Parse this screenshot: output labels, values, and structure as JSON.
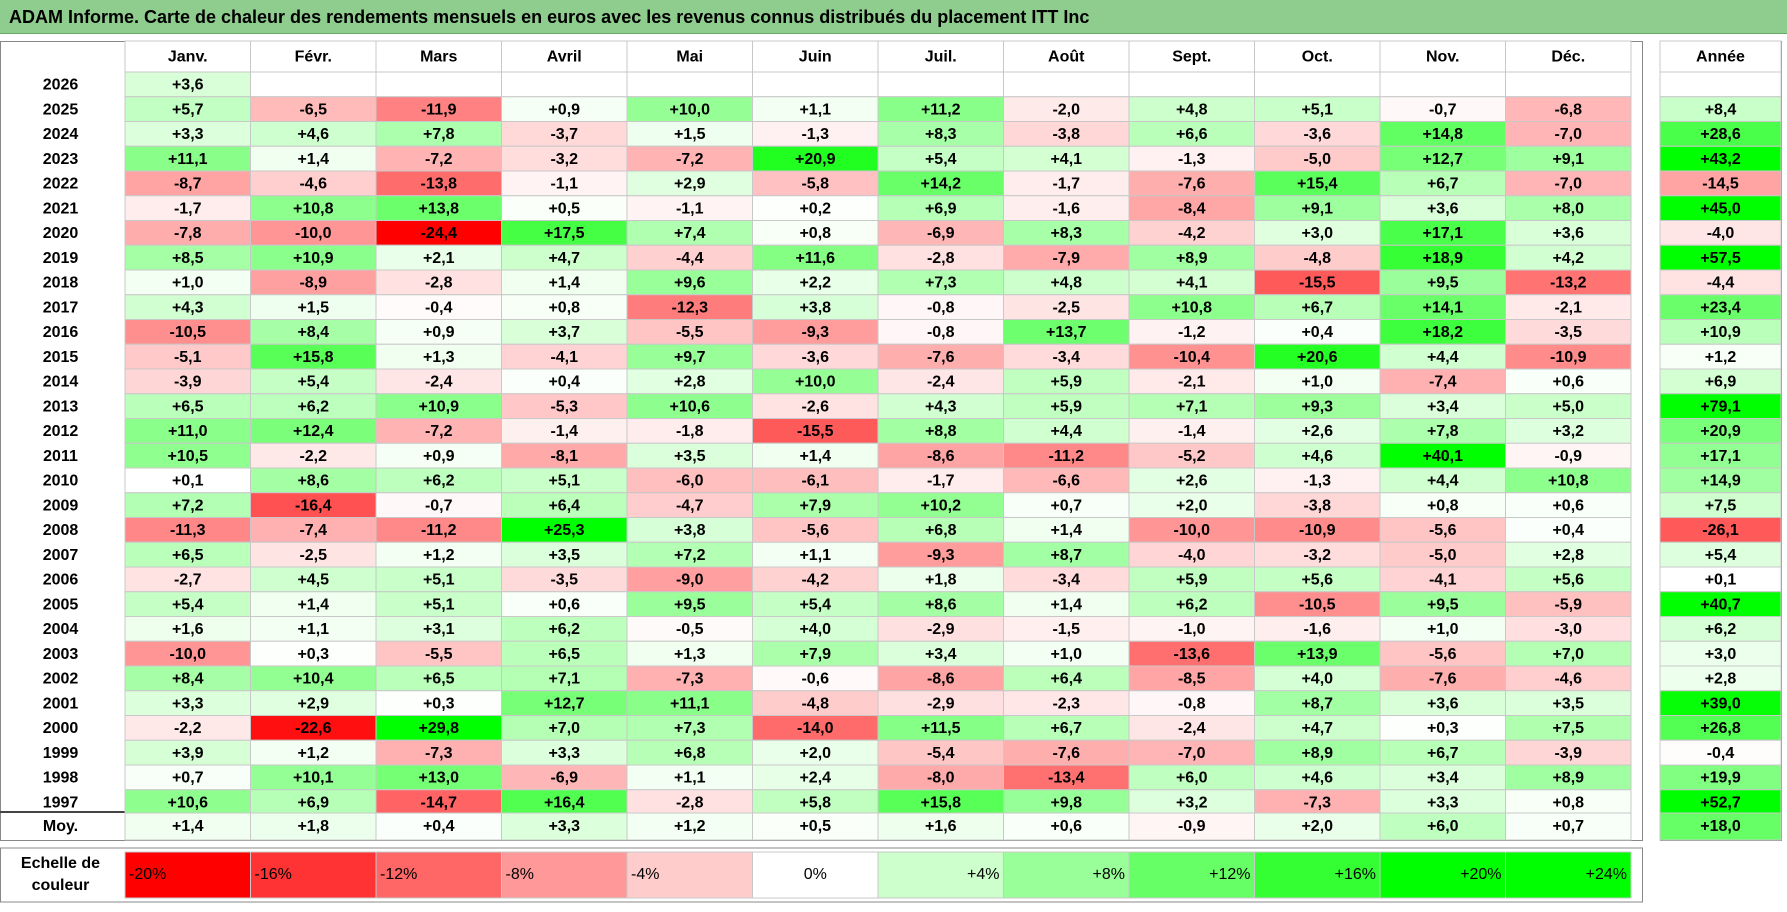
{
  "title": "ADAM Informe. Carte de chaleur des rendements mensuels en euros avec les revenus connus distribués du placement ITT Inc",
  "chart_data": {
    "type": "heatmap",
    "months": [
      "Janv.",
      "Févr.",
      "Mars",
      "Avril",
      "Mai",
      "Juin",
      "Juil.",
      "Août",
      "Sept.",
      "Oct.",
      "Nov.",
      "Déc."
    ],
    "year_column_label": "Année",
    "average_row_label": "Moy.",
    "rows": [
      {
        "year": "2026",
        "values": [
          "+3,6",
          null,
          null,
          null,
          null,
          null,
          null,
          null,
          null,
          null,
          null,
          null
        ],
        "annual": null
      },
      {
        "year": "2025",
        "values": [
          "+5,7",
          "-6,5",
          "-11,9",
          "+0,9",
          "+10,0",
          "+1,1",
          "+11,2",
          "-2,0",
          "+4,8",
          "+5,1",
          "-0,7",
          "-6,8"
        ],
        "annual": "+8,4"
      },
      {
        "year": "2024",
        "values": [
          "+3,3",
          "+4,6",
          "+7,8",
          "-3,7",
          "+1,5",
          "-1,3",
          "+8,3",
          "-3,8",
          "+6,6",
          "-3,6",
          "+14,8",
          "-7,0"
        ],
        "annual": "+28,6"
      },
      {
        "year": "2023",
        "values": [
          "+11,1",
          "+1,4",
          "-7,2",
          "-3,2",
          "-7,2",
          "+20,9",
          "+5,4",
          "+4,1",
          "-1,3",
          "-5,0",
          "+12,7",
          "+9,1"
        ],
        "annual": "+43,2"
      },
      {
        "year": "2022",
        "values": [
          "-8,7",
          "-4,6",
          "-13,8",
          "-1,1",
          "+2,9",
          "-5,8",
          "+14,2",
          "-1,7",
          "-7,6",
          "+15,4",
          "+6,7",
          "-7,0"
        ],
        "annual": "-14,5"
      },
      {
        "year": "2021",
        "values": [
          "-1,7",
          "+10,8",
          "+13,8",
          "+0,5",
          "-1,1",
          "+0,2",
          "+6,9",
          "-1,6",
          "-8,4",
          "+9,1",
          "+3,6",
          "+8,0"
        ],
        "annual": "+45,0"
      },
      {
        "year": "2020",
        "values": [
          "-7,8",
          "-10,0",
          "-24,4",
          "+17,5",
          "+7,4",
          "+0,8",
          "-6,9",
          "+8,3",
          "-4,2",
          "+3,0",
          "+17,1",
          "+3,6"
        ],
        "annual": "-4,0"
      },
      {
        "year": "2019",
        "values": [
          "+8,5",
          "+10,9",
          "+2,1",
          "+4,7",
          "-4,4",
          "+11,6",
          "-2,8",
          "-7,9",
          "+8,9",
          "-4,8",
          "+18,9",
          "+4,2"
        ],
        "annual": "+57,5"
      },
      {
        "year": "2018",
        "values": [
          "+1,0",
          "-8,9",
          "-2,8",
          "+1,4",
          "+9,6",
          "+2,2",
          "+7,3",
          "+4,8",
          "+4,1",
          "-15,5",
          "+9,5",
          "-13,2"
        ],
        "annual": "-4,4"
      },
      {
        "year": "2017",
        "values": [
          "+4,3",
          "+1,5",
          "-0,4",
          "+0,8",
          "-12,3",
          "+3,8",
          "-0,8",
          "-2,5",
          "+10,8",
          "+6,7",
          "+14,1",
          "-2,1"
        ],
        "annual": "+23,4"
      },
      {
        "year": "2016",
        "values": [
          "-10,5",
          "+8,4",
          "+0,9",
          "+3,7",
          "-5,5",
          "-9,3",
          "-0,8",
          "+13,7",
          "-1,2",
          "+0,4",
          "+18,2",
          "-3,5"
        ],
        "annual": "+10,9"
      },
      {
        "year": "2015",
        "values": [
          "-5,1",
          "+15,8",
          "+1,3",
          "-4,1",
          "+9,7",
          "-3,6",
          "-7,6",
          "-3,4",
          "-10,4",
          "+20,6",
          "+4,4",
          "-10,9"
        ],
        "annual": "+1,2"
      },
      {
        "year": "2014",
        "values": [
          "-3,9",
          "+5,4",
          "-2,4",
          "+0,4",
          "+2,8",
          "+10,0",
          "-2,4",
          "+5,9",
          "-2,1",
          "+1,0",
          "-7,4",
          "+0,6"
        ],
        "annual": "+6,9"
      },
      {
        "year": "2013",
        "values": [
          "+6,5",
          "+6,2",
          "+10,9",
          "-5,3",
          "+10,6",
          "-2,6",
          "+4,3",
          "+5,9",
          "+7,1",
          "+9,3",
          "+3,4",
          "+5,0"
        ],
        "annual": "+79,1"
      },
      {
        "year": "2012",
        "values": [
          "+11,0",
          "+12,4",
          "-7,2",
          "-1,4",
          "-1,8",
          "-15,5",
          "+8,8",
          "+4,4",
          "-1,4",
          "+2,6",
          "+7,8",
          "+3,2"
        ],
        "annual": "+20,9"
      },
      {
        "year": "2011",
        "values": [
          "+10,5",
          "-2,2",
          "+0,9",
          "-8,1",
          "+3,5",
          "+1,4",
          "-8,6",
          "-11,2",
          "-5,2",
          "+4,6",
          "+40,1",
          "-0,9"
        ],
        "annual": "+17,1"
      },
      {
        "year": "2010",
        "values": [
          "+0,1",
          "+8,6",
          "+6,2",
          "+5,1",
          "-6,0",
          "-6,1",
          "-1,7",
          "-6,6",
          "+2,6",
          "-1,3",
          "+4,4",
          "+10,8"
        ],
        "annual": "+14,9"
      },
      {
        "year": "2009",
        "values": [
          "+7,2",
          "-16,4",
          "-0,7",
          "+6,4",
          "-4,7",
          "+7,9",
          "+10,2",
          "+0,7",
          "+2,0",
          "-3,8",
          "+0,8",
          "+0,6"
        ],
        "annual": "+7,5"
      },
      {
        "year": "2008",
        "values": [
          "-11,3",
          "-7,4",
          "-11,2",
          "+25,3",
          "+3,8",
          "-5,6",
          "+6,8",
          "+1,4",
          "-10,0",
          "-10,9",
          "-5,6",
          "+0,4"
        ],
        "annual": "-26,1"
      },
      {
        "year": "2007",
        "values": [
          "+6,5",
          "-2,5",
          "+1,2",
          "+3,5",
          "+7,2",
          "+1,1",
          "-9,3",
          "+8,7",
          "-4,0",
          "-3,2",
          "-5,0",
          "+2,8"
        ],
        "annual": "+5,4"
      },
      {
        "year": "2006",
        "values": [
          "-2,7",
          "+4,5",
          "+5,1",
          "-3,5",
          "-9,0",
          "-4,2",
          "+1,8",
          "-3,4",
          "+5,9",
          "+5,6",
          "-4,1",
          "+5,6"
        ],
        "annual": "+0,1"
      },
      {
        "year": "2005",
        "values": [
          "+5,4",
          "+1,4",
          "+5,1",
          "+0,6",
          "+9,5",
          "+5,4",
          "+8,6",
          "+1,4",
          "+6,2",
          "-10,5",
          "+9,5",
          "-5,9"
        ],
        "annual": "+40,7"
      },
      {
        "year": "2004",
        "values": [
          "+1,6",
          "+1,1",
          "+3,1",
          "+6,2",
          "-0,5",
          "+4,0",
          "-2,9",
          "-1,5",
          "-1,0",
          "-1,6",
          "+1,0",
          "-3,0"
        ],
        "annual": "+6,2"
      },
      {
        "year": "2003",
        "values": [
          "-10,0",
          "+0,3",
          "-5,5",
          "+6,5",
          "+1,3",
          "+7,9",
          "+3,4",
          "+1,0",
          "-13,6",
          "+13,9",
          "-5,6",
          "+7,0"
        ],
        "annual": "+3,0"
      },
      {
        "year": "2002",
        "values": [
          "+8,4",
          "+10,4",
          "+6,5",
          "+7,1",
          "-7,3",
          "-0,6",
          "-8,6",
          "+6,4",
          "-8,5",
          "+4,0",
          "-7,6",
          "-4,6"
        ],
        "annual": "+2,8"
      },
      {
        "year": "2001",
        "values": [
          "+3,3",
          "+2,9",
          "+0,3",
          "+12,7",
          "+11,1",
          "-4,8",
          "-2,9",
          "-2,3",
          "-0,8",
          "+8,7",
          "+3,6",
          "+3,5"
        ],
        "annual": "+39,0"
      },
      {
        "year": "2000",
        "values": [
          "-2,2",
          "-22,6",
          "+29,8",
          "+7,0",
          "+7,3",
          "-14,0",
          "+11,5",
          "+6,7",
          "-2,4",
          "+4,7",
          "+0,3",
          "+7,5"
        ],
        "annual": "+26,8"
      },
      {
        "year": "1999",
        "values": [
          "+3,9",
          "+1,2",
          "-7,3",
          "+3,3",
          "+6,8",
          "+2,0",
          "-5,4",
          "-7,6",
          "-7,0",
          "+8,9",
          "+6,7",
          "-3,9"
        ],
        "annual": "-0,4"
      },
      {
        "year": "1998",
        "values": [
          "+0,7",
          "+10,1",
          "+13,0",
          "-6,9",
          "+1,1",
          "+2,4",
          "-8,0",
          "-13,4",
          "+6,0",
          "+4,6",
          "+3,4",
          "+8,9"
        ],
        "annual": "+19,9"
      },
      {
        "year": "1997",
        "values": [
          "+10,6",
          "+6,9",
          "-14,7",
          "+16,4",
          "-2,8",
          "+5,8",
          "+15,8",
          "+9,8",
          "+3,2",
          "-7,3",
          "+3,3",
          "+0,8"
        ],
        "annual": "+52,7"
      }
    ],
    "average": {
      "values": [
        "+1,4",
        "+1,8",
        "+0,4",
        "+3,3",
        "+1,2",
        "+0,5",
        "+1,6",
        "+0,6",
        "-0,9",
        "+2,0",
        "+6,0",
        "+0,7"
      ],
      "annual": "+18,0"
    },
    "color_scale": {
      "label_line1": "Echelle de",
      "label_line2": "couleur",
      "stops": [
        "-20%",
        "-16%",
        "-12%",
        "-8%",
        "-4%",
        "0%",
        "+4%",
        "+8%",
        "+12%",
        "+16%",
        "+20%",
        "+24%"
      ],
      "stop_values": [
        -20,
        -16,
        -12,
        -8,
        -4,
        0,
        4,
        8,
        12,
        16,
        20,
        24
      ]
    },
    "colors": {
      "negative_max": "#ff0000",
      "neutral": "#ffffff",
      "positive_max": "#00ff00",
      "title_bar": "#8fcd8f",
      "border": "#b4b4b4"
    }
  }
}
